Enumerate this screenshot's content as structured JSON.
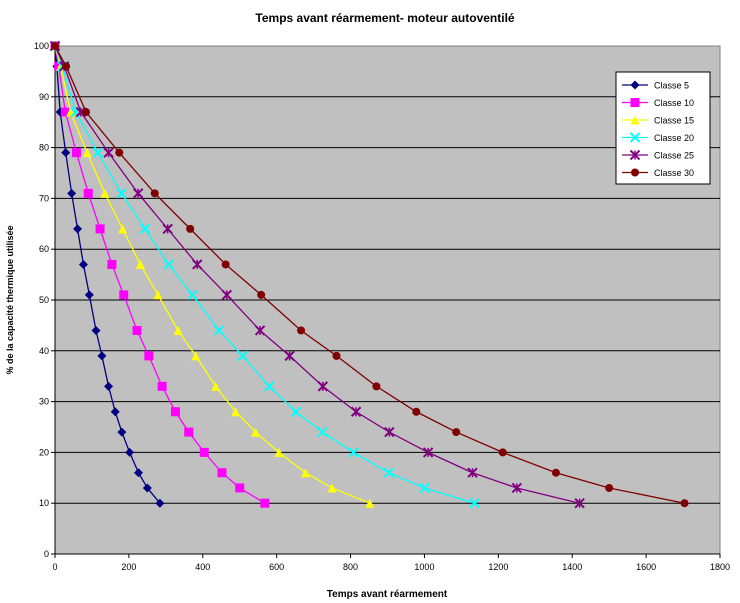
{
  "chart_data": {
    "type": "line",
    "title": "Temps avant réarmement- moteur autoventilé",
    "xlabel": "Temps avant réarmement",
    "ylabel": "% de la capacité thermique utilisée",
    "xlim": [
      0,
      1800
    ],
    "ylim": [
      0,
      100
    ],
    "xticks": [
      0,
      200,
      400,
      600,
      800,
      1000,
      1200,
      1400,
      1600,
      1800
    ],
    "yticks": [
      0,
      10,
      20,
      30,
      40,
      50,
      60,
      70,
      80,
      90,
      100
    ],
    "grid": "horizontal",
    "plot_background": "#c0c0c0",
    "legend_position": "top-right",
    "y_levels": [
      100,
      96,
      87,
      79,
      71,
      64,
      57,
      51,
      44,
      39,
      33,
      28,
      24,
      20,
      16,
      13,
      10
    ],
    "series": [
      {
        "name": "Classe 5",
        "color": "#000080",
        "marker": "diamond",
        "x": [
          0,
          5,
          14,
          29,
          45,
          61,
          77,
          93,
          111,
          127,
          145,
          163,
          181,
          202,
          226,
          250,
          284
        ]
      },
      {
        "name": "Classe 10",
        "color": "#ff00ff",
        "marker": "square",
        "x": [
          0,
          10,
          28,
          58,
          90,
          122,
          154,
          186,
          222,
          254,
          290,
          326,
          362,
          404,
          452,
          500,
          568
        ]
      },
      {
        "name": "Classe 15",
        "color": "#ffff00",
        "marker": "triangle",
        "x": [
          0,
          15,
          42,
          87,
          135,
          183,
          231,
          279,
          333,
          381,
          435,
          489,
          543,
          606,
          678,
          750,
          852
        ]
      },
      {
        "name": "Classe 20",
        "color": "#00ffff",
        "marker": "x",
        "x": [
          0,
          20,
          56,
          116,
          180,
          244,
          308,
          372,
          444,
          508,
          580,
          652,
          724,
          808,
          904,
          1000,
          1136
        ]
      },
      {
        "name": "Classe 25",
        "color": "#800080",
        "marker": "star",
        "x": [
          0,
          25,
          70,
          145,
          225,
          305,
          385,
          465,
          555,
          635,
          725,
          815,
          905,
          1010,
          1130,
          1250,
          1420
        ]
      },
      {
        "name": "Classe 30",
        "color": "#800000",
        "marker": "circle",
        "x": [
          0,
          30,
          84,
          174,
          270,
          366,
          462,
          558,
          666,
          762,
          870,
          978,
          1086,
          1212,
          1356,
          1500,
          1704
        ]
      }
    ]
  }
}
